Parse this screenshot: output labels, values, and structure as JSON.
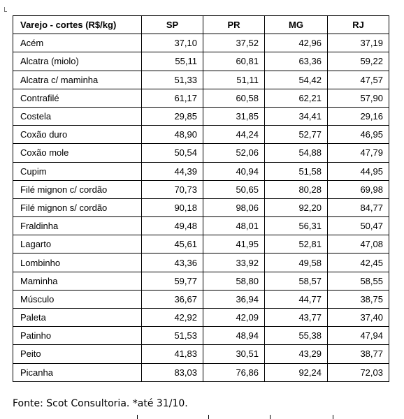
{
  "table": {
    "headers": [
      "Varejo - cortes (R$/kg)",
      "SP",
      "PR",
      "MG",
      "RJ"
    ],
    "rows": [
      [
        "Acém",
        "37,10",
        "37,52",
        "42,96",
        "37,19"
      ],
      [
        "Alcatra (miolo)",
        "55,11",
        "60,81",
        "63,36",
        "59,22"
      ],
      [
        "Alcatra c/ maminha",
        "51,33",
        "51,11",
        "54,42",
        "47,57"
      ],
      [
        "Contrafilé",
        "61,17",
        "60,58",
        "62,21",
        "57,90"
      ],
      [
        "Costela",
        "29,85",
        "31,85",
        "34,41",
        "29,16"
      ],
      [
        "Coxão duro",
        "48,90",
        "44,24",
        "52,77",
        "46,95"
      ],
      [
        "Coxão mole",
        "50,54",
        "52,06",
        "54,88",
        "47,79"
      ],
      [
        "Cupim",
        "44,39",
        "40,94",
        "51,58",
        "44,95"
      ],
      [
        "Filé mignon c/ cordão",
        "70,73",
        "50,65",
        "80,28",
        "69,98"
      ],
      [
        "Filé mignon s/ cordão",
        "90,18",
        "98,06",
        "92,20",
        "84,77"
      ],
      [
        "Fraldinha",
        "49,48",
        "48,01",
        "56,31",
        "50,47"
      ],
      [
        "Lagarto",
        "45,61",
        "41,95",
        "52,81",
        "47,08"
      ],
      [
        "Lombinho",
        "43,36",
        "33,92",
        "49,58",
        "42,45"
      ],
      [
        "Maminha",
        "59,77",
        "58,80",
        "58,57",
        "58,55"
      ],
      [
        "Músculo",
        "36,67",
        "36,94",
        "44,77",
        "38,75"
      ],
      [
        "Paleta",
        "42,92",
        "42,09",
        "43,77",
        "37,40"
      ],
      [
        "Patinho",
        "51,53",
        "48,94",
        "55,38",
        "47,94"
      ],
      [
        "Peito",
        "41,83",
        "30,51",
        "43,29",
        "38,77"
      ],
      [
        "Picanha",
        "83,03",
        "76,86",
        "92,24",
        "72,03"
      ]
    ]
  },
  "footer": {
    "source": "Fonte: Scot Consultoria. *até 31/10."
  }
}
